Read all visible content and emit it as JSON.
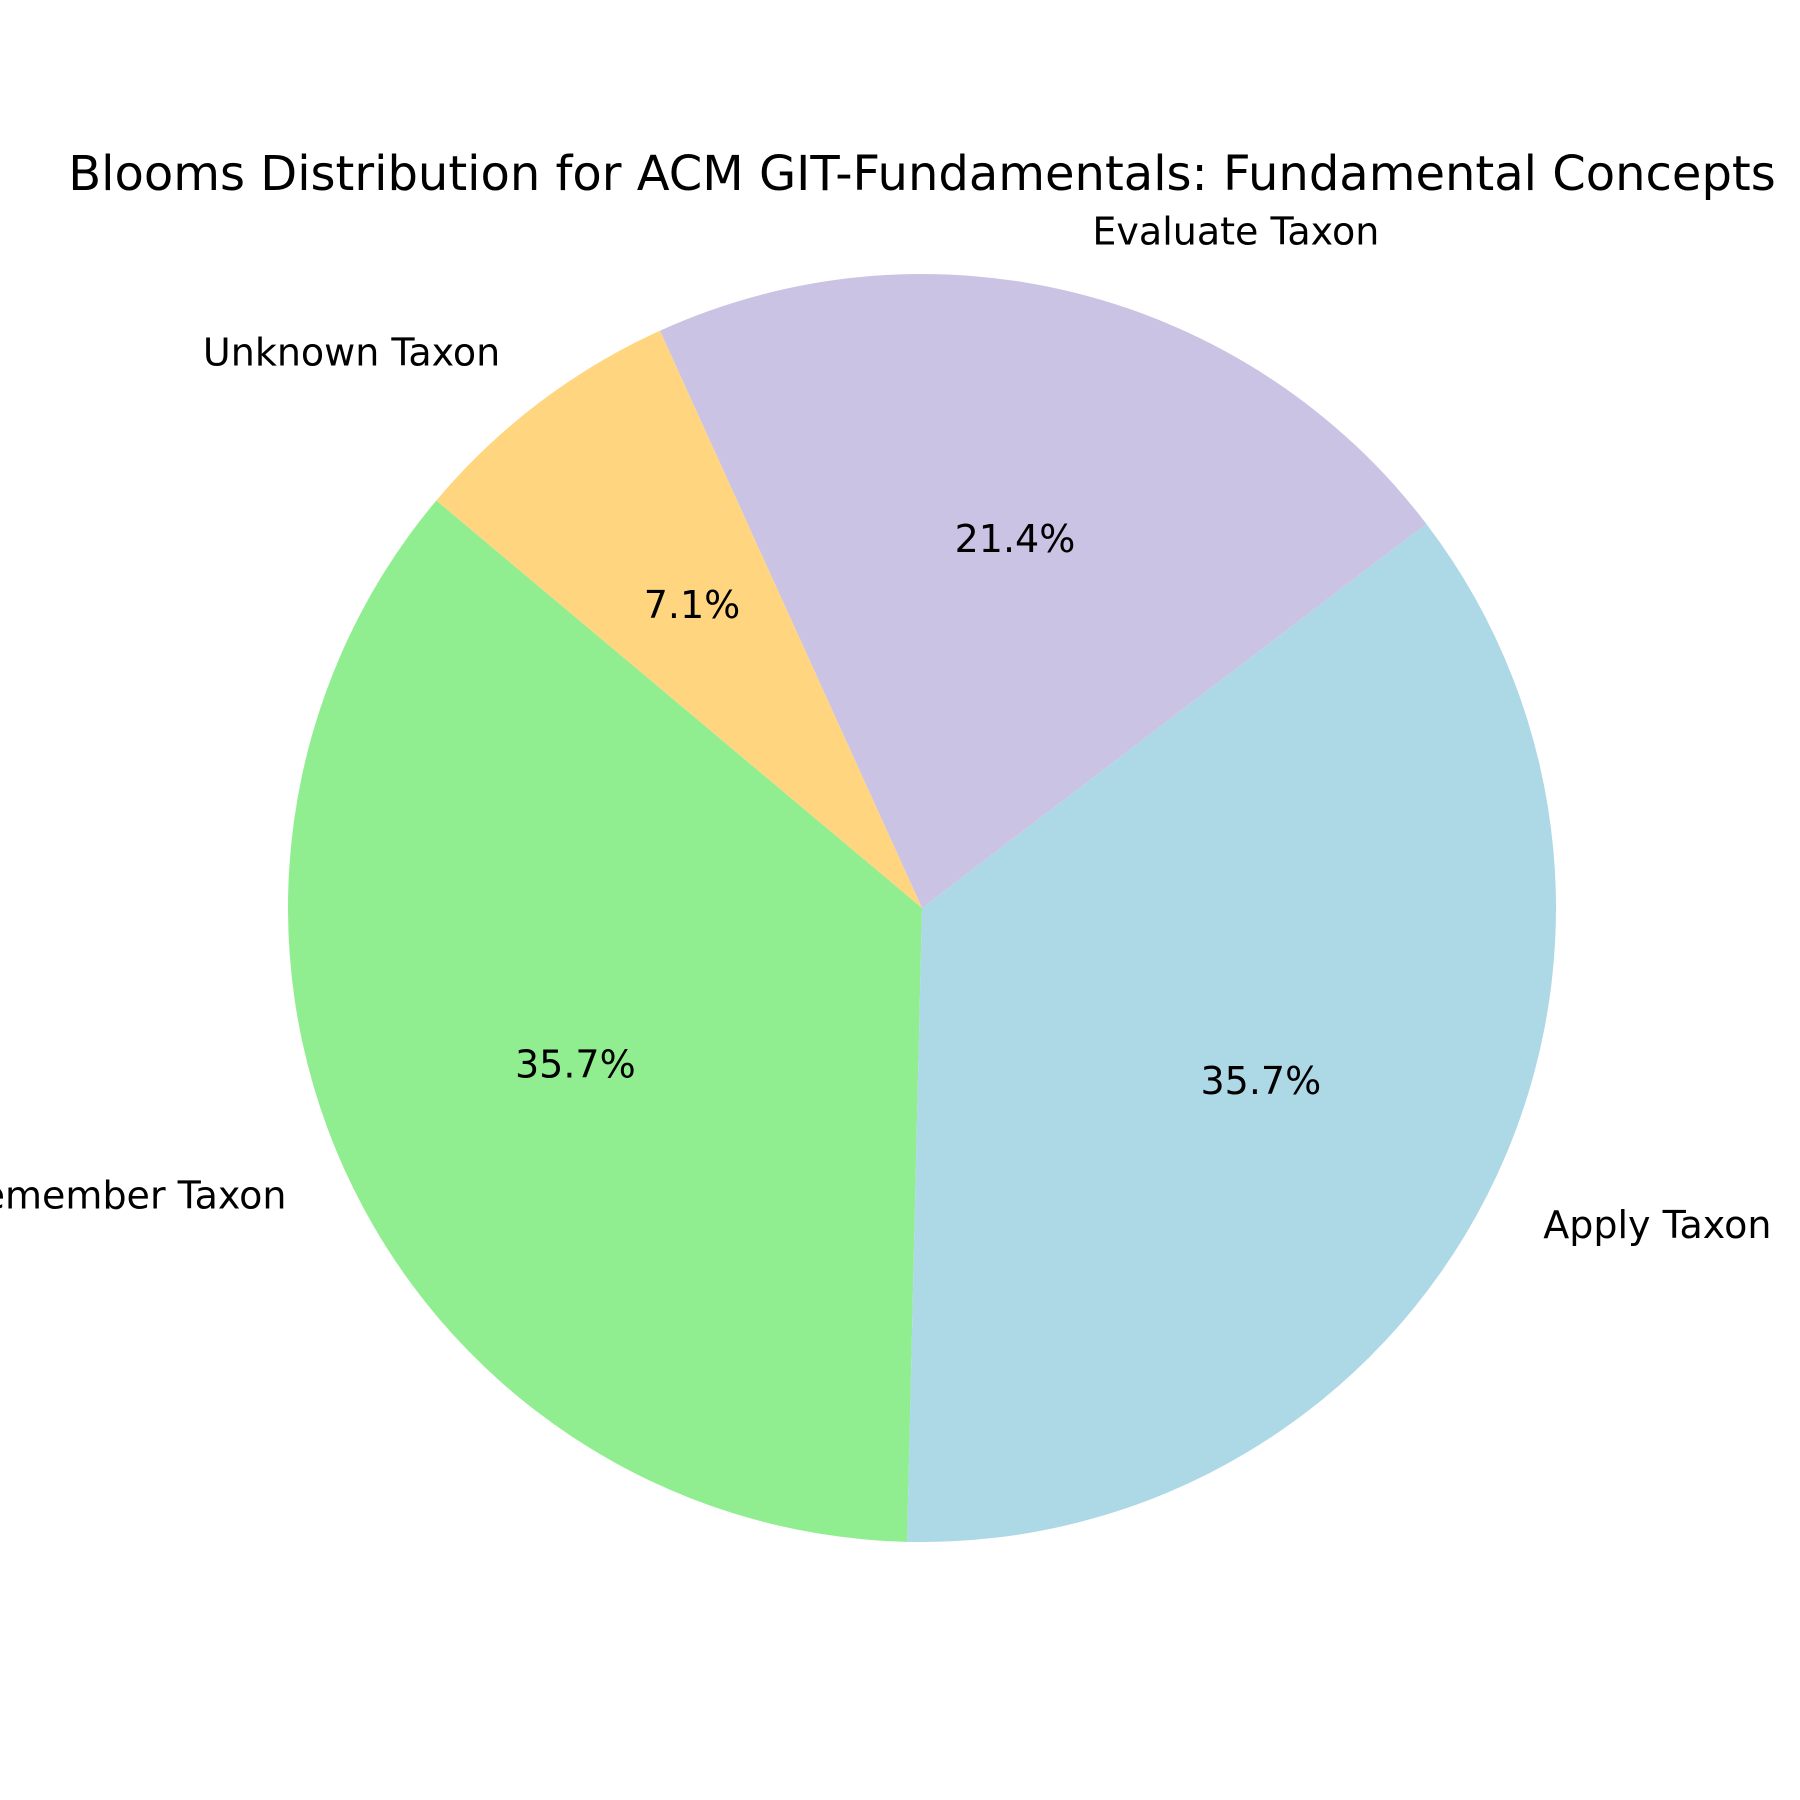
{
  "chart_data": {
    "type": "pie",
    "title": "Blooms Distribution for ACM GIT-Fundamentals: Fundamental Concepts",
    "start_angle_deg": 140,
    "direction": "counterclockwise",
    "slices": [
      {
        "label": "Remember Taxon",
        "value": 35.7,
        "pct_label": "35.7%",
        "color": "#90ee90"
      },
      {
        "label": "Apply Taxon",
        "value": 35.7,
        "pct_label": "35.7%",
        "color": "#add8e6"
      },
      {
        "label": "Evaluate Taxon",
        "value": 21.4,
        "pct_label": "21.4%",
        "color": "#cbc3e3"
      },
      {
        "label": "Unknown Taxon",
        "value": 7.1,
        "pct_label": "7.1%",
        "color": "#ffd580"
      }
    ]
  }
}
